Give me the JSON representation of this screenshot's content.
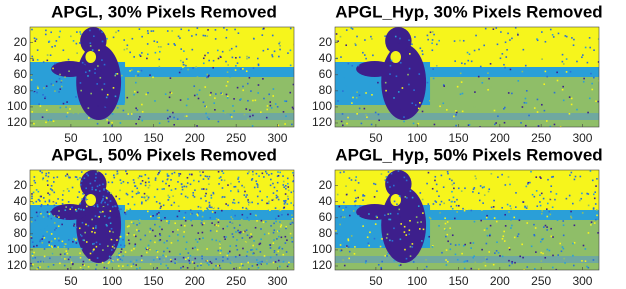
{
  "chart_data": [
    {
      "type": "image",
      "title": "APGL, 30% Pixels Removed",
      "xlim": [
        0.5,
        320
      ],
      "ylim": [
        0.5,
        125
      ],
      "y_reversed": true,
      "xticks": [
        50,
        100,
        150,
        200,
        250,
        300
      ],
      "yticks": [
        20,
        40,
        60,
        80,
        100,
        120
      ]
    },
    {
      "type": "image",
      "title": "APGL_Hyp, 30% Pixels Removed",
      "xlim": [
        0.5,
        320
      ],
      "ylim": [
        0.5,
        125
      ],
      "y_reversed": true,
      "xticks": [
        50,
        100,
        150,
        200,
        250,
        300
      ],
      "yticks": [
        20,
        40,
        60,
        80,
        100,
        120
      ]
    },
    {
      "type": "image",
      "title": "APGL, 50% Pixels Removed",
      "xlim": [
        0.5,
        320
      ],
      "ylim": [
        0.5,
        125
      ],
      "y_reversed": true,
      "xticks": [
        50,
        100,
        150,
        200,
        250,
        300
      ],
      "yticks": [
        20,
        40,
        60,
        80,
        100,
        120
      ]
    },
    {
      "type": "image",
      "title": "APGL_Hyp, 50% Pixels Removed",
      "xlim": [
        0.5,
        320
      ],
      "ylim": [
        0.5,
        125
      ],
      "y_reversed": true,
      "xticks": [
        50,
        100,
        150,
        200,
        250,
        300
      ],
      "yticks": [
        20,
        40,
        60,
        80,
        100,
        120
      ]
    }
  ]
}
